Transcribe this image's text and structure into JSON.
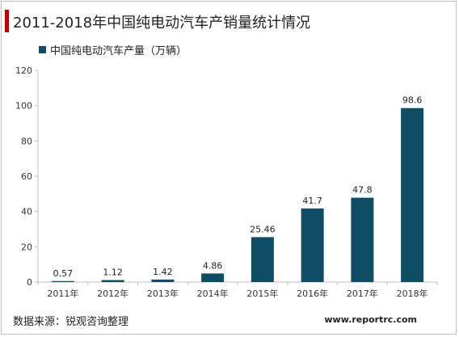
{
  "header": {
    "title": "2011-2018年中国纯电动汽车产销量统计情况"
  },
  "footer": {
    "source": "数据来源：锐观咨询整理",
    "website": "www.reportrc.com"
  },
  "colors": {
    "accent": "#c00000",
    "bar": "#0e4d64",
    "axis": "#bfbfbf"
  },
  "chart_data": {
    "type": "bar",
    "title": "2011-2018年中国纯电动汽车产销量统计情况",
    "xlabel": "",
    "ylabel": "",
    "categories": [
      "2011年",
      "2012年",
      "2013年",
      "2014年",
      "2015年",
      "2016年",
      "2017年",
      "2018年"
    ],
    "series": [
      {
        "name": "中国纯电动汽车产量（万辆）",
        "values": [
          0.57,
          1.12,
          1.42,
          4.86,
          25.46,
          41.7,
          47.8,
          98.6
        ],
        "labels": [
          "0.57",
          "1.12",
          "1.42",
          "4.86",
          "25.46",
          "41.7",
          "47.8",
          "98.6"
        ]
      }
    ],
    "ylim": [
      0,
      120
    ],
    "yticks": [
      0,
      20,
      40,
      60,
      80,
      100,
      120
    ],
    "grid": false,
    "legend": "top-left"
  }
}
